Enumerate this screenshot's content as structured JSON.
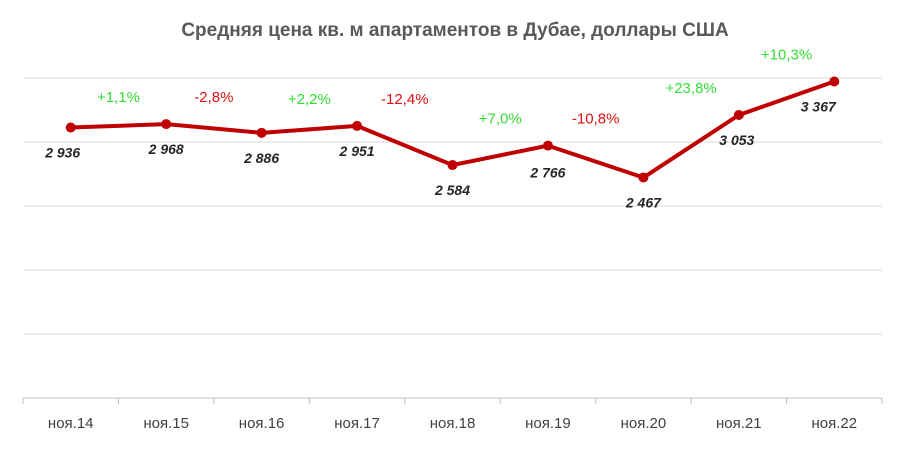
{
  "chart_data": {
    "type": "line",
    "title": "Средняя цена кв. м апартаментов в Дубае, доллары США",
    "categories": [
      "ноя.14",
      "ноя.15",
      "ноя.16",
      "ноя.17",
      "ноя.18",
      "ноя.19",
      "ноя.20",
      "ноя.21",
      "ноя.22"
    ],
    "values": [
      2936,
      2968,
      2886,
      2951,
      2584,
      2766,
      2467,
      3053,
      3367
    ],
    "value_labels": [
      "2 936",
      "2 968",
      "2 886",
      "2 951",
      "2 584",
      "2 766",
      "2 467",
      "3 053",
      "3 367"
    ],
    "changes": [
      "+1,1%",
      "-2,8%",
      "+2,2%",
      "-12,4%",
      "+7,0%",
      "-10,8%",
      "+23,8%",
      "+10,3%"
    ],
    "ylim": [
      1000,
      4000
    ],
    "grid": true,
    "line_color": "#c00000",
    "positive_color": "#33dd33",
    "negative_color": "#dd1111",
    "gridline_color": "#d9d9d9"
  }
}
